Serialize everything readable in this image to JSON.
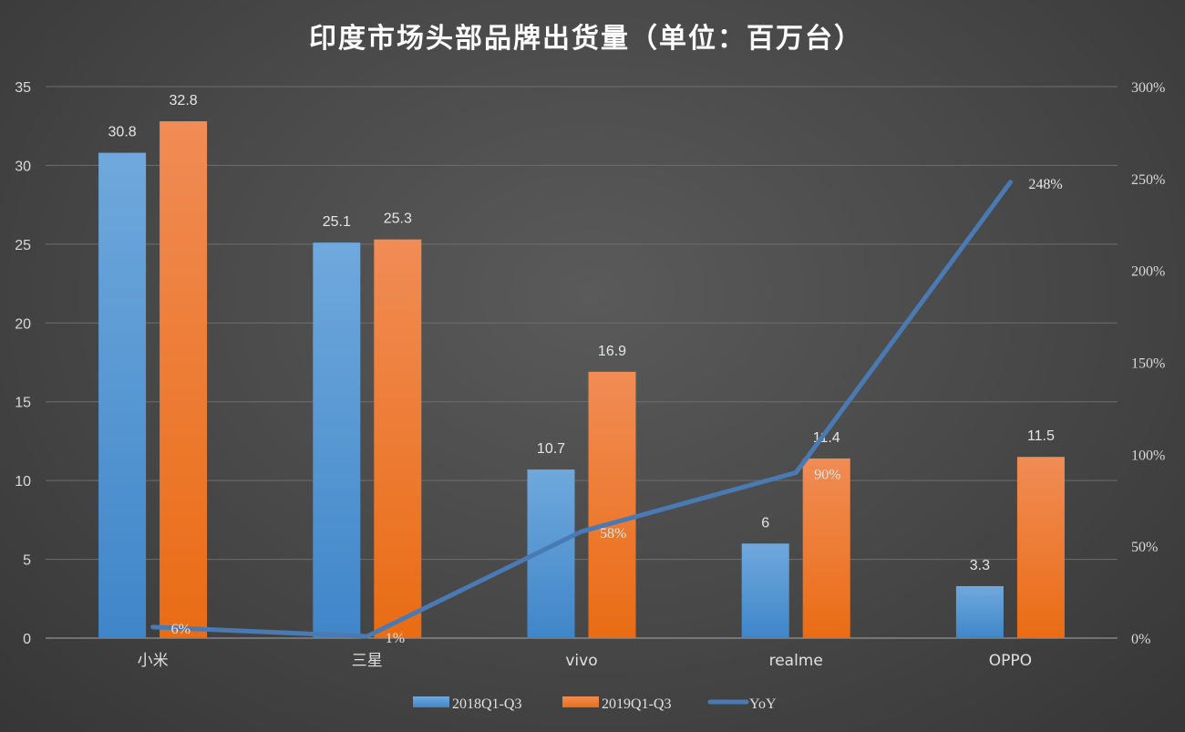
{
  "chart_data": {
    "type": "bar",
    "title": "印度市场头部品牌出货量（单位：百万台）",
    "categories": [
      "小米",
      "三星",
      "vivo",
      "realme",
      "OPPO"
    ],
    "series": [
      {
        "name": "2018Q1-Q3",
        "type": "bar",
        "values": [
          30.8,
          25.1,
          10.7,
          6,
          3.3
        ],
        "color": "#5b9bd5",
        "labels": [
          "30.8",
          "25.1",
          "10.7",
          "6",
          "3.3"
        ]
      },
      {
        "name": "2019Q1-Q3",
        "type": "bar",
        "values": [
          32.8,
          25.3,
          16.9,
          11.4,
          11.5
        ],
        "color": "#ed7d31",
        "labels": [
          "32.8",
          "25.3",
          "16.9",
          "11.4",
          "11.5"
        ]
      },
      {
        "name": "YoY",
        "type": "line",
        "axis": "right",
        "values": [
          6,
          1,
          58,
          90,
          248
        ],
        "color": "#4a7ab3",
        "labels": [
          "6%",
          "1%",
          "58%",
          "90%",
          "248%"
        ]
      }
    ],
    "y_left": {
      "min": 0,
      "max": 35,
      "step": 5,
      "ticks": [
        "0",
        "5",
        "10",
        "15",
        "20",
        "25",
        "30",
        "35"
      ]
    },
    "y_right": {
      "min": 0,
      "max": 300,
      "step": 50,
      "ticks": [
        "0%",
        "50%",
        "100%",
        "150%",
        "200%",
        "250%",
        "300%"
      ]
    },
    "grid": true,
    "legend_position": "bottom"
  }
}
